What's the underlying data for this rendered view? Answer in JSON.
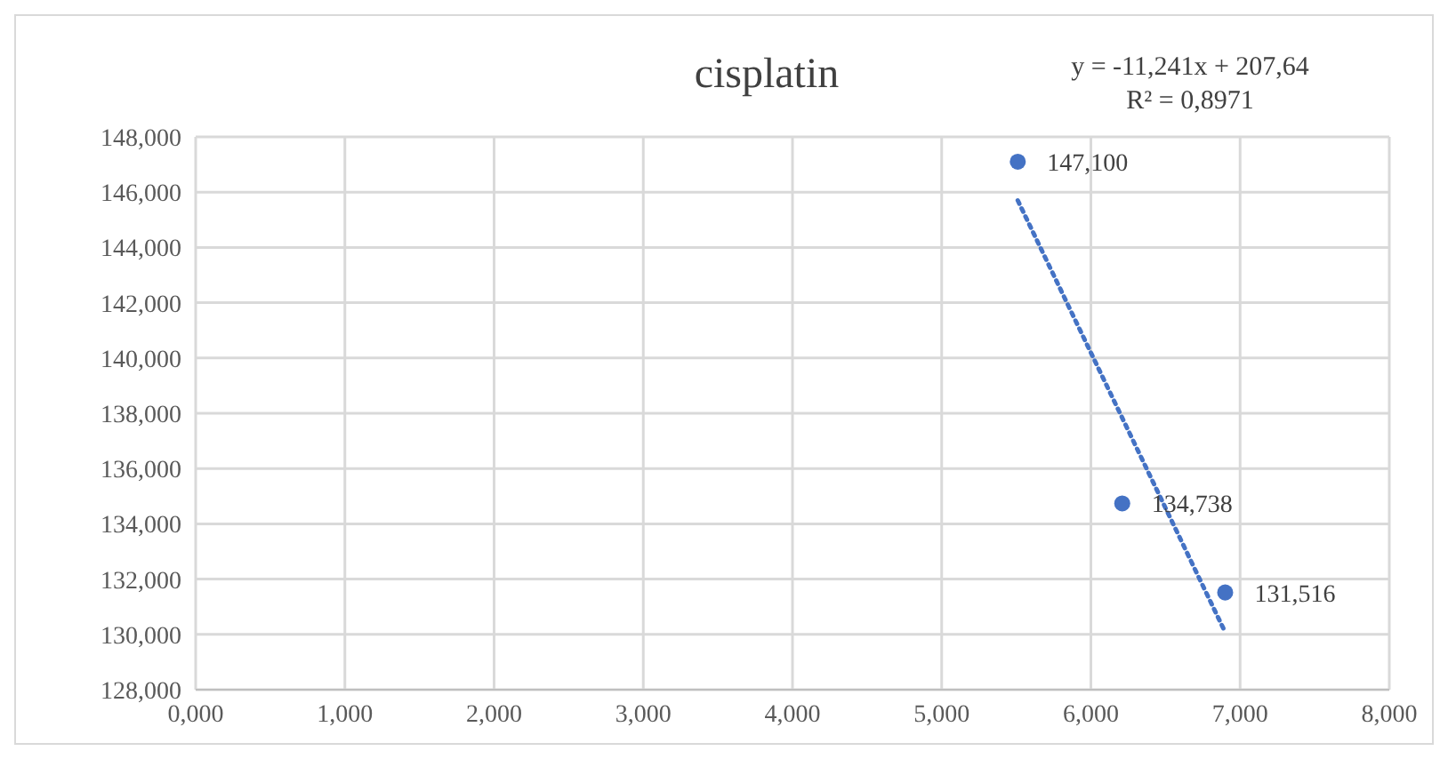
{
  "chart_data": {
    "type": "scatter",
    "title": "cisplatin",
    "annotations": [
      "y = -11,241x + 207,64",
      "R² = 0,8971"
    ],
    "series": [
      {
        "color": "#4472c4",
        "x": [
          5.51,
          6.21,
          6.9
        ],
        "values": [
          147.1,
          134.738,
          131.516
        ],
        "value_labels": [
          "147,100",
          "134,738",
          "131,516"
        ],
        "marker": "circle"
      },
      {
        "type": "line",
        "color": "#4472c4",
        "x": [
          5.51,
          6.9
        ],
        "values": [
          145.7,
          130.08
        ],
        "line_style": "dotted",
        "marker": "none"
      }
    ],
    "xlim": [
      0,
      8
    ],
    "xticks": [
      {
        "value": 0,
        "label": "0,000"
      },
      {
        "value": 1,
        "label": "1,000"
      },
      {
        "value": 2,
        "label": "2,000"
      },
      {
        "value": 3,
        "label": "3,000"
      },
      {
        "value": 4,
        "label": "4,000"
      },
      {
        "value": 5,
        "label": "5,000"
      },
      {
        "value": 6,
        "label": "6,000"
      },
      {
        "value": 7,
        "label": "7,000"
      },
      {
        "value": 8,
        "label": "8,000"
      }
    ],
    "ylim": [
      128,
      148
    ],
    "yticks": [
      {
        "value": 128,
        "label": "128,000"
      },
      {
        "value": 130,
        "label": "130,000"
      },
      {
        "value": 132,
        "label": "132,000"
      },
      {
        "value": 134,
        "label": "134,000"
      },
      {
        "value": 136,
        "label": "136,000"
      },
      {
        "value": 138,
        "label": "138,000"
      },
      {
        "value": 140,
        "label": "140,000"
      },
      {
        "value": 142,
        "label": "142,000"
      },
      {
        "value": 144,
        "label": "144,000"
      },
      {
        "value": 146,
        "label": "146,000"
      },
      {
        "value": 148,
        "label": "148,000"
      }
    ],
    "grid": true
  }
}
